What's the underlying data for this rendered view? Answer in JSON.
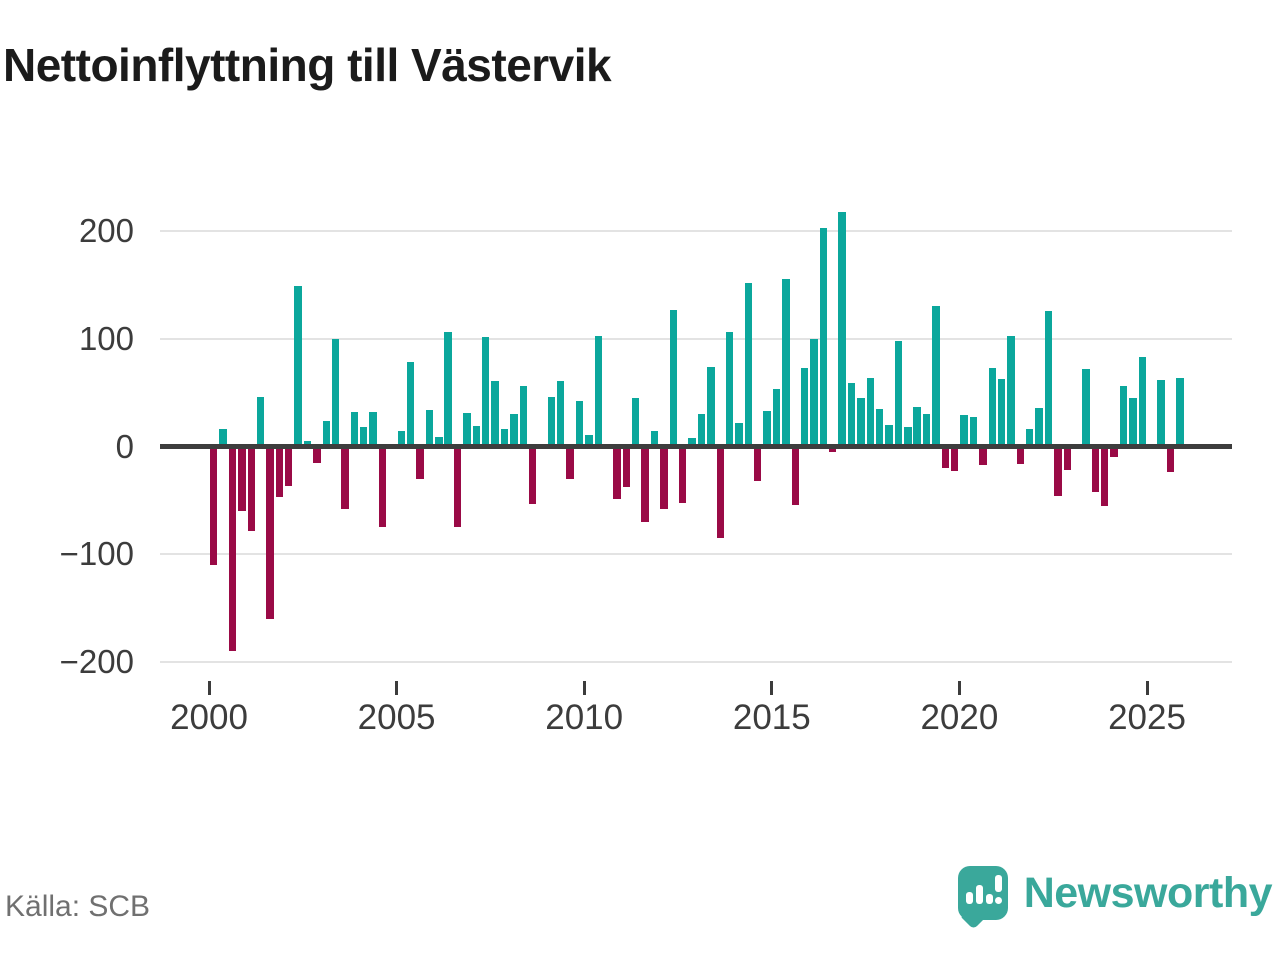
{
  "title": "Nettoinflyttning till Västervik",
  "source": "Källa: SCB",
  "brand": {
    "name": "Newsworthy"
  },
  "colors": {
    "positive_bar": "#0ba79c",
    "negative_bar": "#9a0a46",
    "brand_teal": "#3aa89b",
    "grid": "#e3e3e3",
    "zero_line": "#3d3d3d",
    "axis_text": "#3c3c3c",
    "title_text": "#1b1b1b",
    "source_text": "#707070"
  },
  "chart_data": {
    "type": "bar",
    "title": "Nettoinflyttning till Västervik",
    "x_unit": "quarter",
    "start_year": 2000,
    "x_range": [
      "2000Q1",
      "2025Q4"
    ],
    "values": [
      -110,
      16,
      -190,
      -60,
      -78,
      46,
      -160,
      -47,
      -37,
      149,
      5,
      -15,
      24,
      100,
      -58,
      32,
      18,
      32,
      -75,
      0,
      14,
      78,
      -30,
      34,
      9,
      106,
      -75,
      31,
      19,
      102,
      61,
      16,
      30,
      56,
      -53,
      0,
      46,
      61,
      -30,
      42,
      11,
      103,
      0,
      -49,
      -38,
      45,
      -70,
      14,
      -58,
      127,
      -52,
      8,
      30,
      74,
      -85,
      106,
      22,
      152,
      -32,
      33,
      53,
      155,
      -54,
      73,
      100,
      203,
      -5,
      218,
      59,
      45,
      64,
      35,
      20,
      98,
      18,
      37,
      30,
      130,
      -20,
      -23,
      29,
      27,
      -17,
      73,
      63,
      103,
      -16,
      16,
      36,
      126,
      -46,
      -22,
      0,
      72,
      -42,
      -55,
      -10,
      56,
      45,
      83,
      0,
      62,
      -24,
      64
    ],
    "x_axis": {
      "tick_labels": [
        "2000",
        "2005",
        "2010",
        "2015",
        "2020",
        "2025"
      ],
      "tick_years": [
        2000,
        2005,
        2010,
        2015,
        2020,
        2025
      ]
    },
    "y_axis": {
      "min": -200,
      "max": 200,
      "tick_values": [
        200,
        100,
        0,
        -100,
        -200
      ],
      "tick_labels": [
        "200",
        "100",
        "0",
        "−100",
        "−200"
      ]
    },
    "grid": true,
    "legend": false
  }
}
